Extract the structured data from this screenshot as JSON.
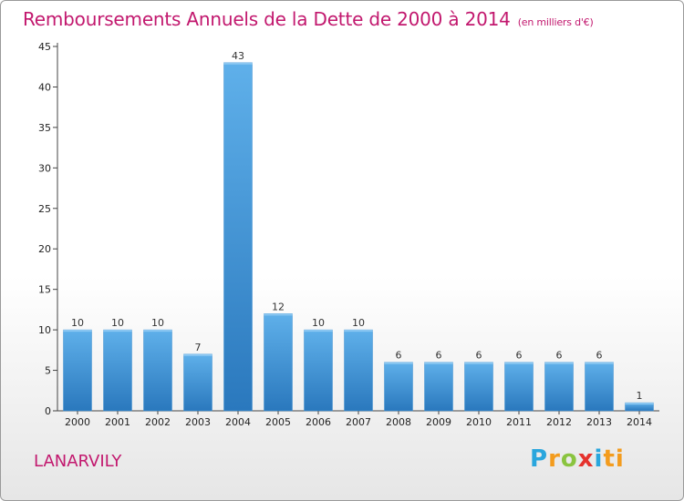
{
  "chart_data": {
    "type": "bar",
    "title": "Remboursements Annuels de la Dette de 2000 à 2014",
    "subtitle": "(en milliers d'€)",
    "xlabel": "",
    "ylabel": "",
    "categories": [
      "2000",
      "2001",
      "2002",
      "2003",
      "2004",
      "2005",
      "2006",
      "2007",
      "2008",
      "2009",
      "2010",
      "2011",
      "2012",
      "2013",
      "2014"
    ],
    "values": [
      10,
      10,
      10,
      7,
      43,
      12,
      10,
      10,
      6,
      6,
      6,
      6,
      6,
      6,
      1
    ],
    "ylim": [
      0,
      45
    ],
    "yticks": [
      0,
      5,
      10,
      15,
      20,
      25,
      30,
      35,
      40,
      45
    ],
    "grid": false,
    "bar_color": "#4a9fe0"
  },
  "commune": "LANARVILY",
  "logo": {
    "letters": [
      "P",
      "r",
      "o",
      "x",
      "i",
      "ti"
    ]
  }
}
